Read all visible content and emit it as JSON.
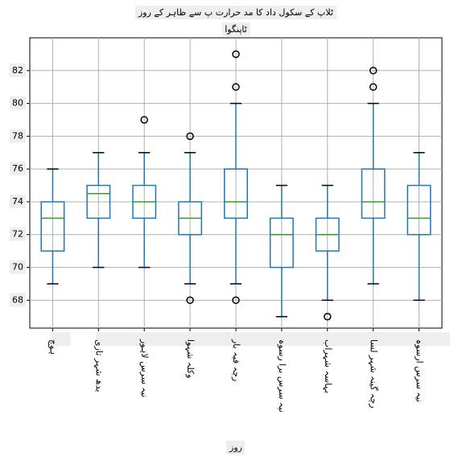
{
  "chart_data": {
    "type": "box",
    "title": "ٹلاپ کے سکول داد کا مد حرارت پ سے ظاہر کے روز",
    "subtitle": "ٹاپنگوا",
    "x_label": "روز",
    "categories": [
      "ہوچ",
      "بدھ شہر تازی",
      "نیہ سرس لاہور",
      "وکلہ شہوا",
      "رچہ فیہ بار",
      "نیہ سرس برا رسوہ",
      "بہاسہ شہراب",
      "رچہ گینہ شہر لسا",
      "نیہ سرس ارسوہ"
    ],
    "boxes": [
      {
        "whislo": 69,
        "q1": 71,
        "med": 73,
        "q3": 74,
        "whishi": 76,
        "fliers": []
      },
      {
        "whislo": 70,
        "q1": 73,
        "med": 74.5,
        "q3": 75,
        "whishi": 77,
        "fliers": []
      },
      {
        "whislo": 70,
        "q1": 73,
        "med": 74,
        "q3": 75,
        "whishi": 77,
        "fliers": [
          79
        ]
      },
      {
        "whislo": 69,
        "q1": 72,
        "med": 73,
        "q3": 74,
        "whishi": 77,
        "fliers": [
          68,
          78
        ]
      },
      {
        "whislo": 69,
        "q1": 73,
        "med": 74,
        "q3": 76,
        "whishi": 80,
        "fliers": [
          68,
          81,
          83
        ]
      },
      {
        "whislo": 67,
        "q1": 70,
        "med": 72,
        "q3": 73,
        "whishi": 75,
        "fliers": []
      },
      {
        "whislo": 68,
        "q1": 71,
        "med": 72,
        "q3": 73,
        "whishi": 75,
        "fliers": [
          67
        ]
      },
      {
        "whislo": 69,
        "q1": 73,
        "med": 74,
        "q3": 76,
        "whishi": 80,
        "fliers": [
          81,
          82
        ]
      },
      {
        "whislo": 68,
        "q1": 72,
        "med": 73,
        "q3": 75,
        "whishi": 77,
        "fliers": []
      }
    ],
    "box_color": "#1f77b4",
    "median_color": "#2ca02c",
    "flier_color": "#000000",
    "ylim": [
      66.3,
      84
    ],
    "yticks": [
      68,
      70,
      72,
      74,
      76,
      78,
      80,
      82
    ],
    "grid": true
  }
}
